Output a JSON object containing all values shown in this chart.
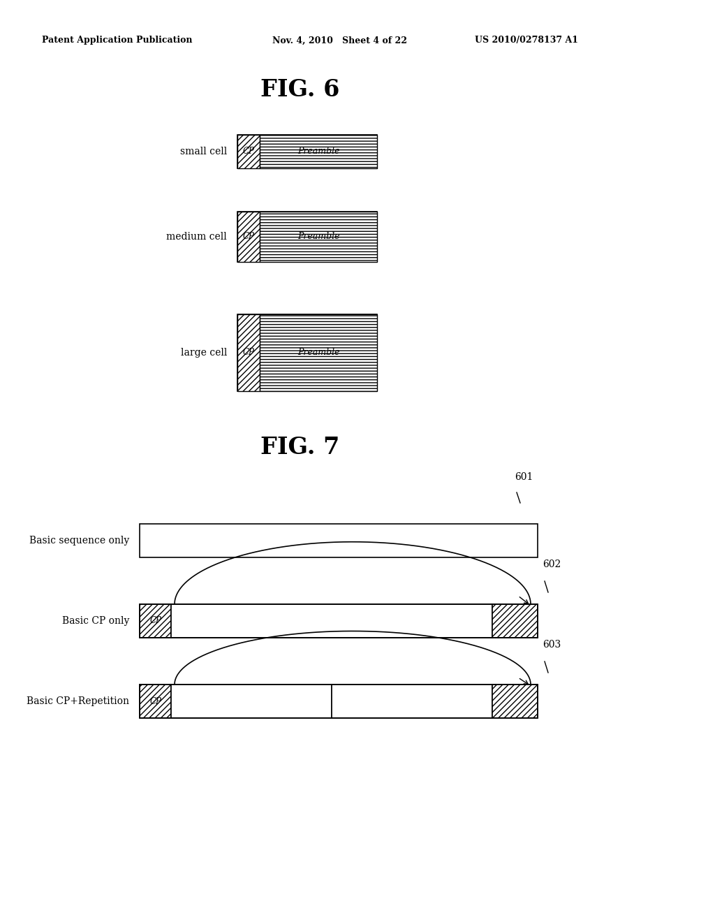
{
  "background_color": "#ffffff",
  "header_left": "Patent Application Publication",
  "header_mid": "Nov. 4, 2010   Sheet 4 of 22",
  "header_right": "US 2010/0278137 A1",
  "fig6_title": "FIG. 6",
  "fig7_title": "FIG. 7",
  "cell_labels": [
    "small cell",
    "medium cell",
    "large cell"
  ],
  "cell_preamble_label": "Preamble",
  "cell_cp_label": "CP",
  "fig7_labels": [
    "Basic sequence only",
    "Basic CP only",
    "Basic CP+Repetition"
  ],
  "ref601": "601",
  "ref602": "602",
  "ref603": "603"
}
